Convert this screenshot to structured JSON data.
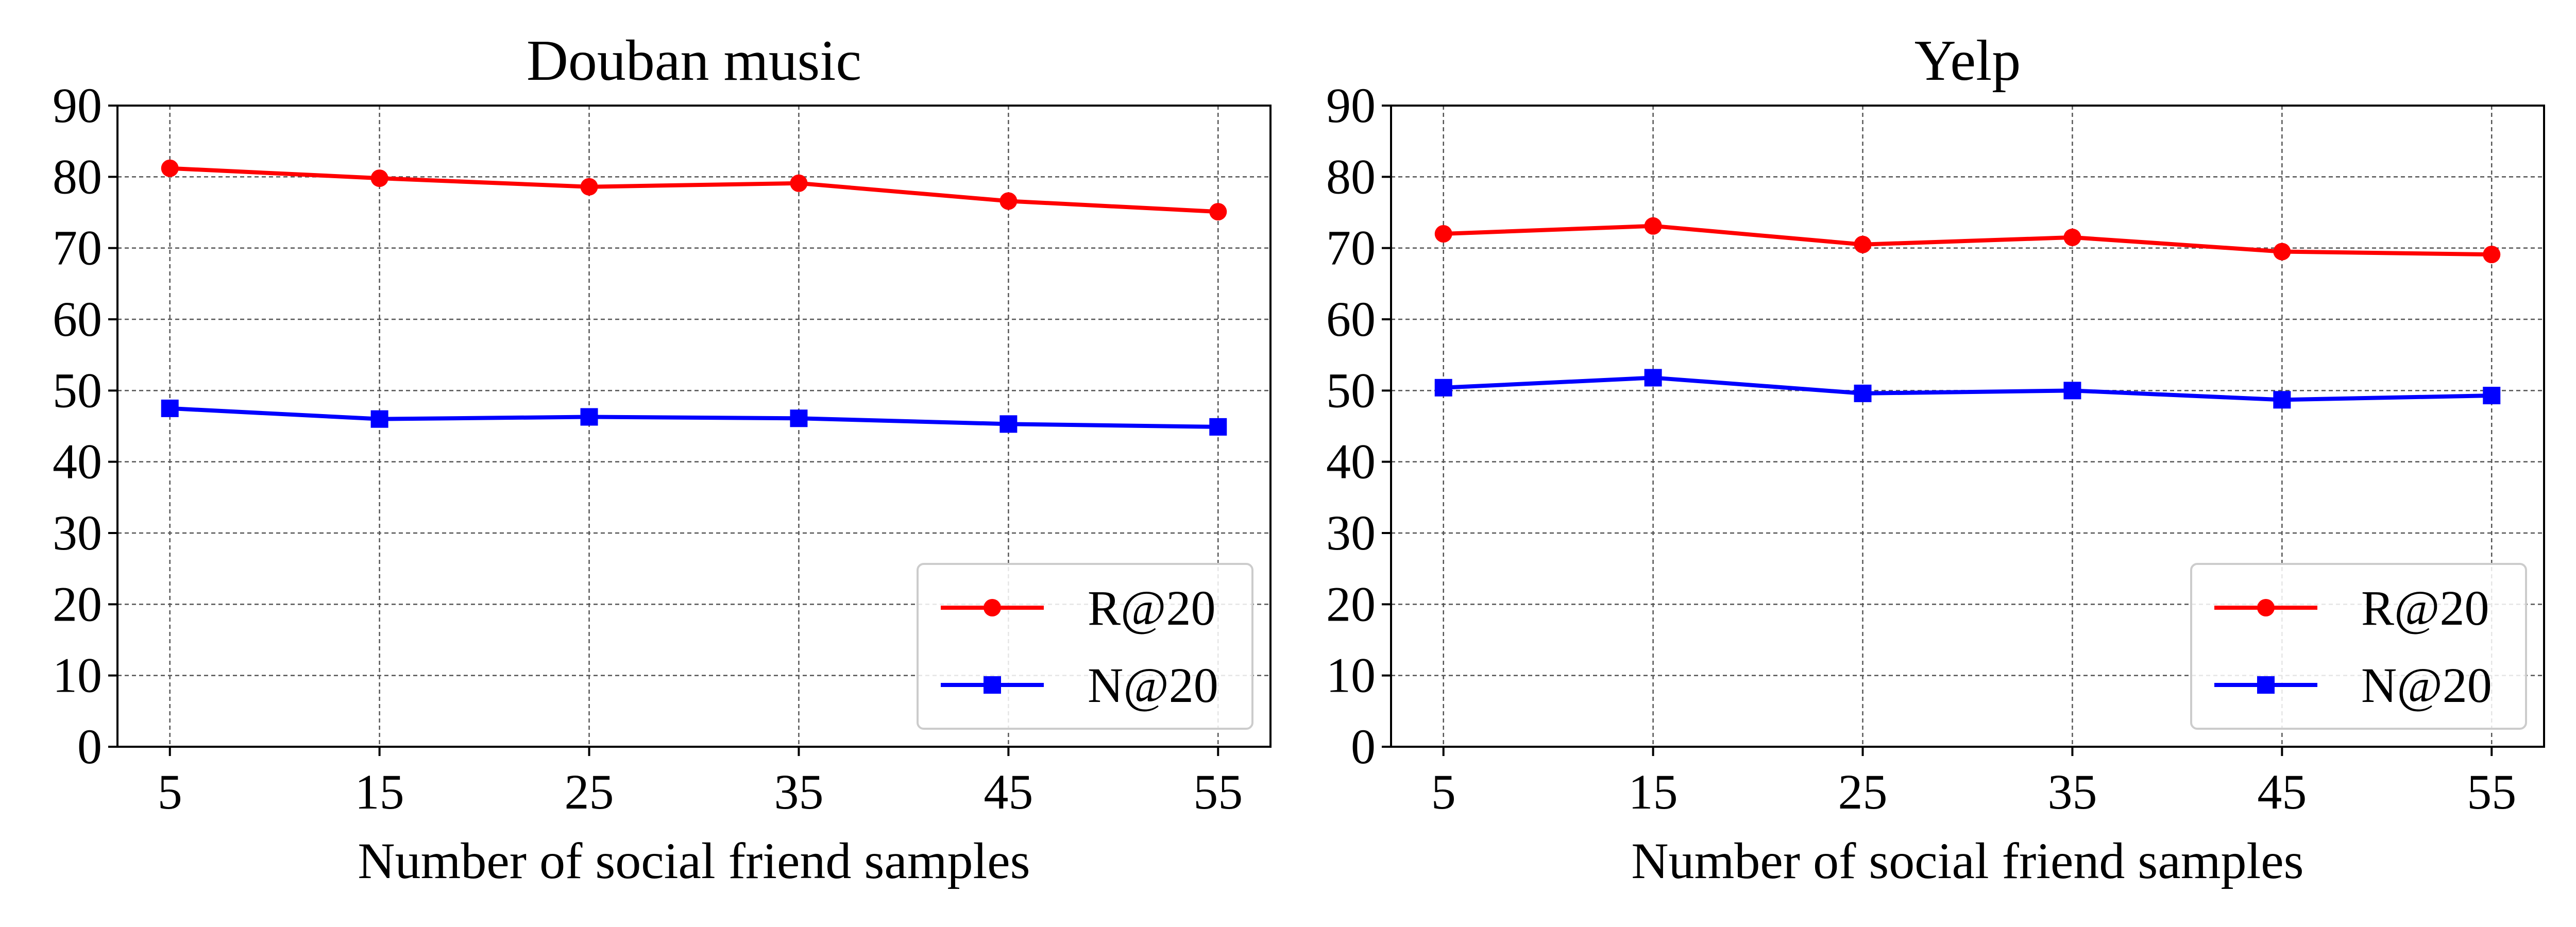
{
  "chart_data": [
    {
      "type": "line",
      "title": "Douban music",
      "xlabel": "Number of social friend samples",
      "ylabel": "",
      "categories": [
        "5",
        "15",
        "25",
        "35",
        "45",
        "55"
      ],
      "x": [
        5,
        15,
        25,
        35,
        45,
        55
      ],
      "ylim": [
        0,
        90
      ],
      "yticks": [
        0,
        10,
        20,
        30,
        40,
        50,
        60,
        70,
        80,
        90
      ],
      "grid": true,
      "legend_position": "lower-right",
      "series": [
        {
          "name": "R@20",
          "color": "#ff0000",
          "marker": "circle",
          "values": [
            81.2,
            79.8,
            78.6,
            79.1,
            76.6,
            75.1
          ]
        },
        {
          "name": "N@20",
          "color": "#0000ff",
          "marker": "square",
          "values": [
            47.5,
            46.0,
            46.3,
            46.1,
            45.3,
            44.9
          ]
        }
      ]
    },
    {
      "type": "line",
      "title": "Yelp",
      "xlabel": "Number of social friend samples",
      "ylabel": "",
      "categories": [
        "5",
        "15",
        "25",
        "35",
        "45",
        "55"
      ],
      "x": [
        5,
        15,
        25,
        35,
        45,
        55
      ],
      "ylim": [
        0,
        90
      ],
      "yticks": [
        0,
        10,
        20,
        30,
        40,
        50,
        60,
        70,
        80,
        90
      ],
      "grid": true,
      "legend_position": "lower-right",
      "series": [
        {
          "name": "R@20",
          "color": "#ff0000",
          "marker": "circle",
          "values": [
            72.0,
            73.1,
            70.5,
            71.5,
            69.5,
            69.1
          ]
        },
        {
          "name": "N@20",
          "color": "#0000ff",
          "marker": "square",
          "values": [
            50.4,
            51.8,
            49.6,
            50.0,
            48.7,
            49.3
          ]
        }
      ]
    }
  ]
}
